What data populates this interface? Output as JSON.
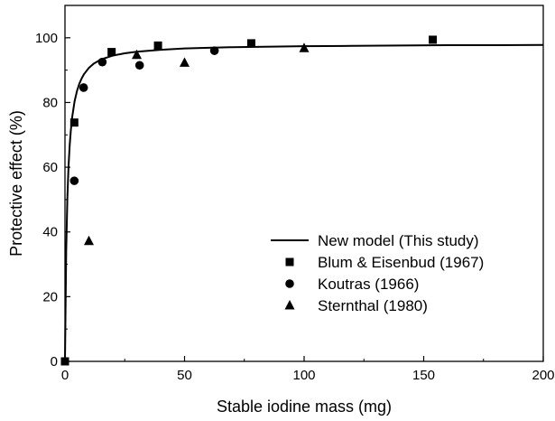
{
  "chart_data": {
    "type": "scatter",
    "xlabel": "Stable iodine mass (mg)",
    "ylabel": "Protective effect (%)",
    "xlim": [
      0,
      200
    ],
    "ylim": [
      0,
      110
    ],
    "x_ticks": [
      "0",
      "50",
      "100",
      "150",
      "200"
    ],
    "y_ticks": [
      "0",
      "20",
      "40",
      "60",
      "80",
      "100"
    ],
    "grid": false,
    "legend_position": "bottom-right",
    "series": [
      {
        "name": "New model (This study)",
        "kind": "line",
        "marker": "none",
        "color": "#000000",
        "x": [
          0,
          0.5,
          1,
          1.5,
          2,
          2.5,
          3,
          4,
          5,
          6,
          7,
          8,
          10,
          12,
          15,
          20,
          25,
          30,
          40,
          50,
          60,
          70,
          80,
          90,
          100,
          120,
          140,
          160,
          180,
          200
        ],
        "y": [
          0,
          33.8,
          50.5,
          60.5,
          67.1,
          71.8,
          75.4,
          80.3,
          83.5,
          85.8,
          87.5,
          88.8,
          90.7,
          92.0,
          93.3,
          94.5,
          95.2,
          95.7,
          96.3,
          96.7,
          96.9,
          97.1,
          97.2,
          97.3,
          97.4,
          97.5,
          97.6,
          97.7,
          97.7,
          97.8
        ]
      },
      {
        "name": "Blum & Eisenbud (1967)",
        "kind": "scatter",
        "marker": "square",
        "color": "#000000",
        "x": [
          0,
          3.9,
          19.5,
          38.9,
          77.9,
          153.8
        ],
        "y": [
          0,
          73.8,
          95.6,
          97.6,
          98.3,
          99.4
        ]
      },
      {
        "name": "Koutras (1966)",
        "kind": "scatter",
        "marker": "circle",
        "color": "#000000",
        "x": [
          3.9,
          7.8,
          15.6,
          31.2,
          62.5
        ],
        "y": [
          55.8,
          84.6,
          92.5,
          91.5,
          96.0
        ]
      },
      {
        "name": "Sternthal (1980)",
        "kind": "scatter",
        "marker": "triangle",
        "color": "#000000",
        "x": [
          10.0,
          30.0,
          50.0,
          100.0
        ],
        "y": [
          37.2,
          94.7,
          92.3,
          96.8
        ]
      }
    ]
  }
}
